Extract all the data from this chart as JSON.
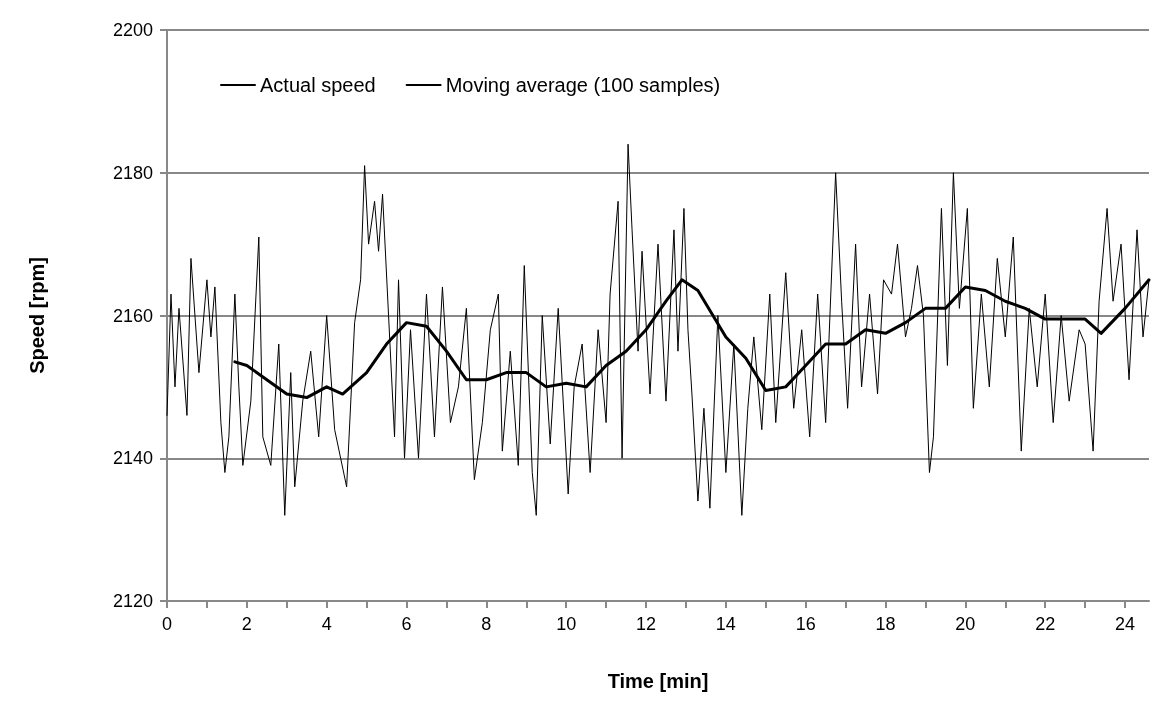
{
  "chart_data": {
    "type": "line",
    "xlabel": "Time [min]",
    "ylabel": "Speed [rpm]",
    "xlim": [
      0,
      24.6
    ],
    "xticks": [
      0,
      2,
      4,
      6,
      8,
      10,
      12,
      14,
      16,
      18,
      20,
      22,
      24
    ],
    "ylim": [
      2120,
      2200
    ],
    "yticks": [
      2120,
      2140,
      2160,
      2180,
      2200
    ],
    "grid": "y",
    "legend": "top left",
    "marker": "none",
    "line_style": "solid",
    "series": [
      {
        "name": "Actual speed",
        "color": "#000000",
        "x": [
          0,
          0.1,
          0.2,
          0.3,
          0.5,
          0.6,
          0.8,
          1,
          1.1,
          1.2,
          1.35,
          1.45,
          1.55,
          1.7,
          1.8,
          1.9,
          2.1,
          2.3,
          2.4,
          2.6,
          2.8,
          2.95,
          3.1,
          3.2,
          3.4,
          3.6,
          3.8,
          4.0,
          4.2,
          4.5,
          4.7,
          4.85,
          4.95,
          5.05,
          5.2,
          5.3,
          5.4,
          5.55,
          5.7,
          5.8,
          5.95,
          6.1,
          6.3,
          6.5,
          6.7,
          6.9,
          7.1,
          7.3,
          7.5,
          7.7,
          7.9,
          8.1,
          8.3,
          8.4,
          8.6,
          8.8,
          8.95,
          9.15,
          9.25,
          9.4,
          9.6,
          9.8,
          10.05,
          10.2,
          10.4,
          10.6,
          10.8,
          11,
          11.1,
          11.3,
          11.4,
          11.55,
          11.65,
          11.8,
          11.9,
          12.1,
          12.3,
          12.5,
          12.7,
          12.8,
          12.95,
          13.05,
          13.15,
          13.3,
          13.45,
          13.6,
          13.8,
          14.0,
          14.2,
          14.4,
          14.55,
          14.7,
          14.9,
          15.1,
          15.25,
          15.5,
          15.7,
          15.9,
          16.1,
          16.3,
          16.5,
          16.75,
          16.9,
          17.05,
          17.25,
          17.4,
          17.6,
          17.8,
          17.95,
          18.15,
          18.3,
          18.5,
          18.65,
          18.8,
          18.95,
          19.1,
          19.2,
          19.4,
          19.55,
          19.7,
          19.85,
          20.05,
          20.2,
          20.4,
          20.6,
          20.8,
          21.0,
          21.2,
          21.4,
          21.6,
          21.8,
          22.0,
          22.2,
          22.4,
          22.6,
          22.85,
          23.0,
          23.2,
          23.35,
          23.55,
          23.7,
          23.9,
          24.1,
          24.3,
          24.45,
          24.6
        ],
        "values": [
          2146,
          2163,
          2150,
          2161,
          2146,
          2168,
          2152,
          2165,
          2157,
          2164,
          2145,
          2138,
          2143,
          2163,
          2150,
          2139,
          2148,
          2171,
          2143,
          2139,
          2156,
          2132,
          2152,
          2136,
          2148,
          2155,
          2143,
          2160,
          2144,
          2136,
          2159,
          2165,
          2181,
          2170,
          2176,
          2169,
          2177,
          2160,
          2143,
          2165,
          2140,
          2158,
          2140,
          2163,
          2143,
          2164,
          2145,
          2150,
          2161,
          2137,
          2145,
          2158,
          2163,
          2141,
          2155,
          2139,
          2167,
          2138,
          2132,
          2160,
          2142,
          2161,
          2135,
          2150,
          2156,
          2138,
          2158,
          2145,
          2163,
          2176,
          2140,
          2184,
          2172,
          2155,
          2169,
          2149,
          2170,
          2148,
          2172,
          2155,
          2175,
          2158,
          2149,
          2134,
          2147,
          2133,
          2160,
          2138,
          2156,
          2132,
          2147,
          2157,
          2144,
          2163,
          2145,
          2166,
          2147,
          2158,
          2143,
          2163,
          2145,
          2180,
          2162,
          2147,
          2170,
          2150,
          2163,
          2149,
          2165,
          2163,
          2170,
          2157,
          2161,
          2167,
          2160,
          2138,
          2143,
          2175,
          2153,
          2180,
          2161,
          2175,
          2147,
          2163,
          2150,
          2168,
          2157,
          2171,
          2141,
          2161,
          2150,
          2163,
          2145,
          2160,
          2148,
          2158,
          2156,
          2141,
          2162,
          2175,
          2162,
          2170,
          2151,
          2172,
          2157,
          2165
        ]
      },
      {
        "name": "Moving average (100 samples)",
        "color": "#000000",
        "x": [
          1.7,
          2,
          2.5,
          3,
          3.5,
          4,
          4.4,
          5,
          5.5,
          6,
          6.5,
          7,
          7.5,
          8,
          8.5,
          9,
          9.5,
          10,
          10.5,
          11,
          11.5,
          12,
          12.5,
          12.9,
          13.3,
          14,
          14.5,
          15,
          15.5,
          16,
          16.5,
          17,
          17.5,
          18,
          18.5,
          19,
          19.5,
          20,
          20.5,
          21,
          21.5,
          22,
          22.5,
          23,
          23.4,
          24,
          24.6
        ],
        "values": [
          2153.5,
          2153,
          2151,
          2149,
          2148.5,
          2150,
          2149,
          2152,
          2156,
          2159,
          2158.5,
          2155,
          2151,
          2151,
          2152,
          2152,
          2150,
          2150.5,
          2150,
          2153,
          2155,
          2158,
          2162,
          2165,
          2163.5,
          2157,
          2154,
          2149.5,
          2150,
          2153,
          2156,
          2156,
          2158,
          2157.5,
          2159,
          2161,
          2161,
          2164,
          2163.5,
          2162,
          2161,
          2159.5,
          2159.5,
          2159.5,
          2157.5,
          2161,
          2165
        ]
      }
    ]
  }
}
